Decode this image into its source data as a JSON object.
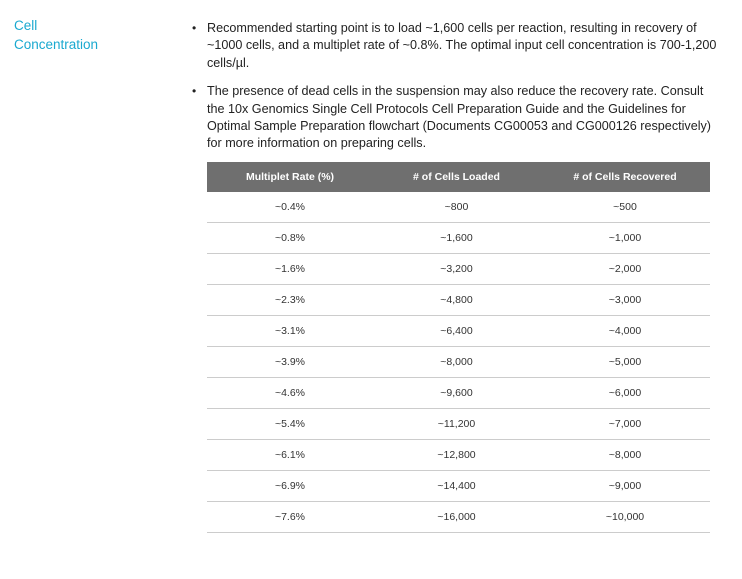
{
  "section": {
    "label_line1": "Cell",
    "label_line2": "Concentration"
  },
  "bullets": [
    {
      "marker": "•",
      "text": "Recommended starting point is to load ~1,600 cells per reaction, resulting in recovery of ~1000 cells, and a multiplet rate of ~0.8%. The optimal input cell concentration is 700-1,200 cells/µl."
    },
    {
      "marker": "•",
      "text": "The presence of dead cells in the suspension may also reduce the recovery rate. Consult the 10x Genomics Single Cell Protocols Cell Preparation Guide and the Guidelines for Optimal Sample Preparation flowchart (Documents CG00053 and CG000126 respectively) for more information on preparing cells."
    }
  ],
  "table": {
    "headers": [
      "Multiplet Rate (%)",
      "# of Cells Loaded",
      "# of Cells Recovered"
    ],
    "rows": [
      [
        "~0.4%",
        "~800",
        "~500"
      ],
      [
        "~0.8%",
        "~1,600",
        "~1,000"
      ],
      [
        "~1.6%",
        "~3,200",
        "~2,000"
      ],
      [
        "~2.3%",
        "~4,800",
        "~3,000"
      ],
      [
        "~3.1%",
        "~6,400",
        "~4,000"
      ],
      [
        "~3.9%",
        "~8,000",
        "~5,000"
      ],
      [
        "~4.6%",
        "~9,600",
        "~6,000"
      ],
      [
        "~5.4%",
        "~11,200",
        "~7,000"
      ],
      [
        "~6.1%",
        "~12,800",
        "~8,000"
      ],
      [
        "~6.9%",
        "~14,400",
        "~9,000"
      ],
      [
        "~7.6%",
        "~16,000",
        "~10,000"
      ]
    ]
  },
  "colors": {
    "label_accent": "#1aa9d0",
    "header_bg": "#6f6f6f",
    "row_divider": "#cccccc"
  }
}
